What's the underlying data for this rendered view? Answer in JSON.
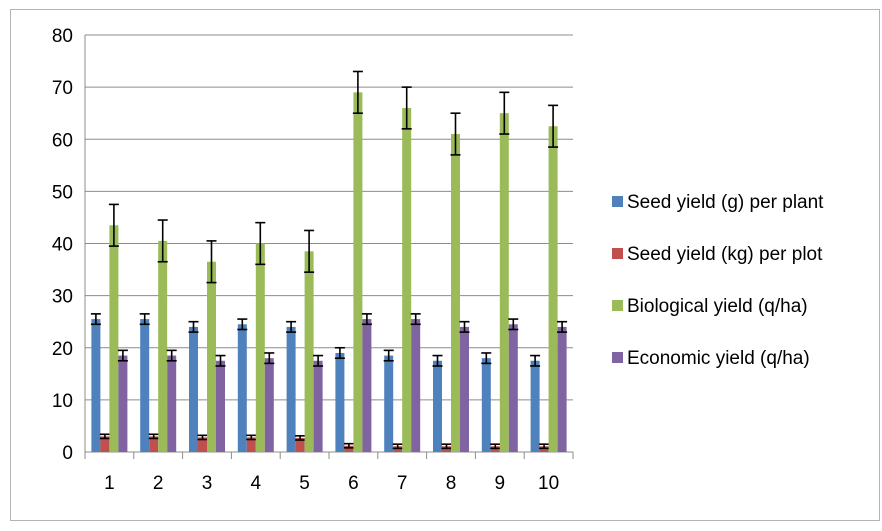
{
  "chart_data": {
    "type": "bar",
    "title": "",
    "xlabel": "",
    "ylabel": "",
    "ylim": [
      0,
      80
    ],
    "yticks": [
      0,
      10,
      20,
      30,
      40,
      50,
      60,
      70,
      80
    ],
    "grid": "horizontal",
    "legend_position": "right",
    "error_bars": true,
    "categories": [
      "1",
      "2",
      "3",
      "4",
      "5",
      "6",
      "7",
      "8",
      "9",
      "10"
    ],
    "series": [
      {
        "name": "Seed yield (g) per plant",
        "color": "#4f81bd",
        "values": [
          25.5,
          25.5,
          24,
          24.5,
          24,
          19,
          18.5,
          17.5,
          18,
          17.5
        ],
        "errors": [
          1,
          1,
          1,
          1,
          1,
          1,
          1,
          1,
          1,
          1
        ]
      },
      {
        "name": "Seed yield (kg) per plot",
        "color": "#c0504d",
        "values": [
          3,
          3,
          2.8,
          2.8,
          2.7,
          1.2,
          1.1,
          1.1,
          1.1,
          1.1
        ],
        "errors": [
          0.4,
          0.4,
          0.4,
          0.4,
          0.4,
          0.4,
          0.4,
          0.4,
          0.4,
          0.4
        ]
      },
      {
        "name": "Biological yield (q/ha)",
        "color": "#9bbb59",
        "values": [
          43.5,
          40.5,
          36.5,
          40,
          38.5,
          69,
          66,
          61,
          65,
          62.5
        ],
        "errors": [
          4,
          4,
          4,
          4,
          4,
          4,
          4,
          4,
          4,
          4
        ]
      },
      {
        "name": "Economic yield (q/ha)",
        "color": "#8064a2",
        "values": [
          18.5,
          18.5,
          17.5,
          18,
          17.5,
          25.5,
          25.5,
          24,
          24.5,
          24
        ],
        "errors": [
          1,
          1,
          1,
          1,
          1,
          1,
          1,
          1,
          1,
          1
        ]
      }
    ]
  }
}
